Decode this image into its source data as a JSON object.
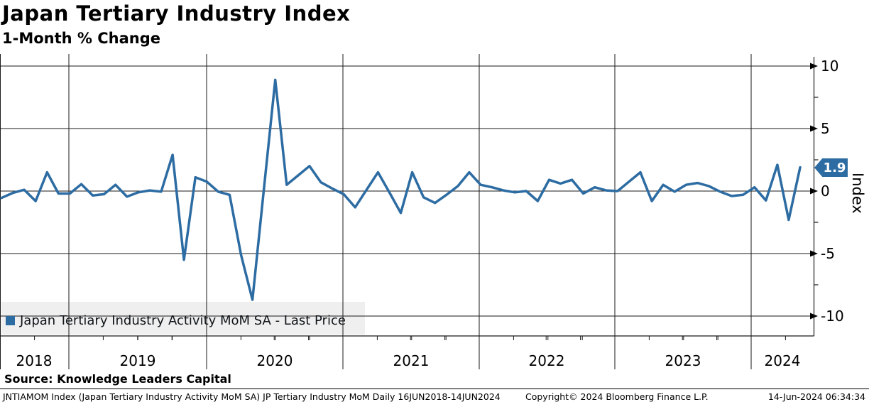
{
  "header": {
    "title": "Japan Tertiary Industry Index",
    "subtitle": "1-Month % Change"
  },
  "legend": {
    "label": "Japan Tertiary Industry Activity MoM SA - Last Price",
    "swatch_color": "#2d6ca2"
  },
  "last_price": {
    "value": "1.9",
    "box_color": "#2d6ca2"
  },
  "y_axis": {
    "title": "Index",
    "tick_labels": [
      "10",
      "5",
      "0",
      "-5",
      "-10"
    ]
  },
  "x_axis": {
    "year_labels": [
      "2018",
      "2019",
      "2020",
      "2021",
      "2022",
      "2023",
      "2024"
    ]
  },
  "source": "Source: Knowledge Leaders Capital",
  "footer": {
    "left": "JNTIAMOM Index (Japan Tertiary Industry Activity MoM SA) JP Tertiary Industry MoM  Daily 16JUN2018-14JUN2024",
    "center": "Copyright© 2024 Bloomberg Finance L.P.",
    "right": "14-Jun-2024 06:34:34"
  },
  "chart_data": {
    "type": "line",
    "title": "Japan Tertiary Industry Index",
    "subtitle": "1-Month % Change",
    "ylabel": "Index",
    "ylim": [
      -11.5,
      11
    ],
    "yticks": [
      10,
      5,
      0,
      -5,
      -10
    ],
    "y_minor_ticks": [
      7.5,
      2.5,
      -2.5,
      -7.5
    ],
    "grid": "both",
    "legend_position": "bottom-left",
    "x_range": [
      "16JUN2018",
      "14JUN2024"
    ],
    "last_price": 1.9,
    "line_color": "#2d6ca2",
    "series": [
      {
        "name": "Japan Tertiary Industry Activity MoM SA - Last Price",
        "months": [
          "2018-06",
          "2018-07",
          "2018-08",
          "2018-09",
          "2018-10",
          "2018-11",
          "2018-12",
          "2019-01",
          "2019-02",
          "2019-03",
          "2019-04",
          "2019-05",
          "2019-06",
          "2019-07",
          "2019-08",
          "2019-09",
          "2019-10",
          "2019-11",
          "2019-12",
          "2020-01",
          "2020-02",
          "2020-03",
          "2020-04",
          "2020-05",
          "2020-06",
          "2020-07",
          "2020-08",
          "2020-09",
          "2020-10",
          "2020-11",
          "2020-12",
          "2021-01",
          "2021-02",
          "2021-03",
          "2021-04",
          "2021-05",
          "2021-06",
          "2021-07",
          "2021-08",
          "2021-09",
          "2021-10",
          "2021-11",
          "2021-12",
          "2022-01",
          "2022-02",
          "2022-03",
          "2022-04",
          "2022-05",
          "2022-06",
          "2022-07",
          "2022-08",
          "2022-09",
          "2022-10",
          "2022-11",
          "2022-12",
          "2023-01",
          "2023-02",
          "2023-03",
          "2023-04",
          "2023-05",
          "2023-06",
          "2023-07",
          "2023-08",
          "2023-09",
          "2023-10",
          "2023-11",
          "2023-12",
          "2024-01",
          "2024-02",
          "2024-03",
          "2024-04"
        ],
        "values": [
          -0.55,
          -0.15,
          0.1,
          -0.8,
          1.5,
          -0.2,
          -0.2,
          0.55,
          -0.35,
          -0.25,
          0.5,
          -0.45,
          -0.1,
          0.05,
          -0.05,
          2.9,
          -5.5,
          1.1,
          0.75,
          -0.05,
          -0.3,
          -5.1,
          -8.7,
          0.1,
          8.9,
          0.5,
          1.25,
          2.0,
          0.7,
          0.2,
          -0.25,
          -1.3,
          0.1,
          1.5,
          -0.1,
          -1.75,
          1.5,
          -0.5,
          -0.95,
          -0.3,
          0.4,
          1.5,
          0.5,
          0.3,
          0.05,
          -0.1,
          0.0,
          -0.8,
          0.9,
          0.6,
          0.9,
          -0.2,
          0.3,
          0.05,
          0.0,
          0.75,
          1.5,
          -0.8,
          0.5,
          -0.05,
          0.5,
          0.65,
          0.4,
          -0.05,
          -0.4,
          -0.3,
          0.3,
          -0.75,
          2.1,
          -2.3,
          1.9
        ]
      }
    ]
  }
}
